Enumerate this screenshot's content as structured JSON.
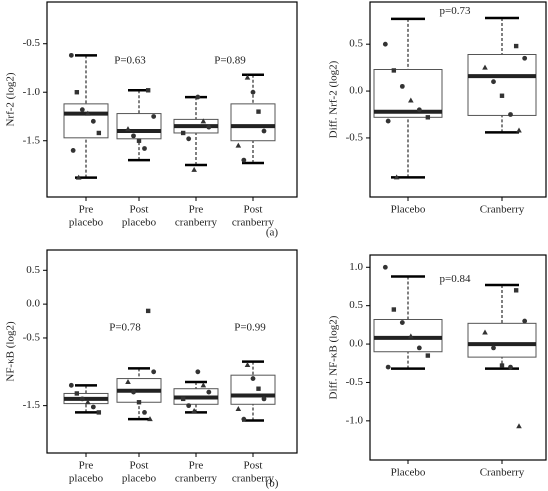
{
  "chart_data": [
    {
      "type": "box",
      "ylabel": "Nrf-2 (log2)",
      "ylim": [
        -2.08,
        -0.07
      ],
      "yticks": [
        -0.5,
        {
          "value": -1,
          "label": "-1.0"
        },
        -1.5
      ],
      "categories": [
        [
          "Pre",
          "placebo"
        ],
        [
          "Post",
          "placebo"
        ],
        [
          "Pre",
          "cranberry"
        ],
        [
          "Post",
          "cranberry"
        ]
      ],
      "boxes": [
        {
          "min": -1.88,
          "q1": -1.47,
          "median": -1.22,
          "q3": -1.12,
          "max": -0.62,
          "points": [
            -0.62,
            -1.0,
            -1.18,
            -1.22,
            -1.3,
            -1.42,
            -1.6,
            -1.88
          ]
        },
        {
          "min": -1.7,
          "q1": -1.48,
          "median": -1.4,
          "q3": -1.22,
          "max": -0.98,
          "points": [
            -0.98,
            -1.25,
            -1.38,
            -1.45,
            -1.5,
            -1.58
          ]
        },
        {
          "min": -1.75,
          "q1": -1.42,
          "median": -1.35,
          "q3": -1.28,
          "max": -1.05,
          "points": [
            -1.05,
            -1.3,
            -1.36,
            -1.42,
            -1.48,
            -1.8
          ]
        },
        {
          "min": -1.73,
          "q1": -1.5,
          "median": -1.35,
          "q3": -1.12,
          "max": -0.82,
          "points": [
            -0.85,
            -1.0,
            -1.2,
            -1.4,
            -1.55,
            -1.7
          ]
        }
      ],
      "annotations": [
        "P=0.63",
        "P=0.89"
      ]
    },
    {
      "type": "box",
      "ylabel": "Diff. Nrf-2 (log2)",
      "ylim": [
        -1.13,
        0.95
      ],
      "yticks": [
        0.5,
        {
          "value": 0,
          "label": "0.0"
        },
        -0.5
      ],
      "categories": [
        [
          "Placebo"
        ],
        [
          "Cranberry"
        ]
      ],
      "boxes": [
        {
          "min": -0.92,
          "q1": -0.28,
          "median": -0.22,
          "q3": 0.23,
          "max": 0.77,
          "points": [
            0.5,
            0.22,
            0.05,
            -0.1,
            -0.2,
            -0.28,
            -0.32,
            -0.92
          ]
        },
        {
          "min": -0.44,
          "q1": -0.26,
          "median": 0.16,
          "q3": 0.39,
          "max": 0.78,
          "points": [
            0.48,
            0.35,
            0.25,
            0.1,
            -0.05,
            -0.25,
            -0.42
          ]
        }
      ],
      "annotations": [
        "p=0.73"
      ]
    },
    {
      "type": "box",
      "ylabel": "NF-κB (log2)",
      "ylim": [
        -2.2,
        0.8
      ],
      "yticks": [
        0.5,
        {
          "value": 0,
          "label": "0.0"
        },
        -0.5,
        -1.5
      ],
      "categories": [
        [
          "Pre",
          "placebo"
        ],
        [
          "Post",
          "placebo"
        ],
        [
          "Pre",
          "cranberry"
        ],
        [
          "Post",
          "cranberry"
        ]
      ],
      "boxes": [
        {
          "min": -1.6,
          "q1": -1.47,
          "median": -1.4,
          "q3": -1.32,
          "max": -1.2,
          "points": [
            -1.2,
            -1.32,
            -1.4,
            -1.45,
            -1.52,
            -1.6
          ]
        },
        {
          "min": -1.7,
          "q1": -1.45,
          "median": -1.28,
          "q3": -1.1,
          "max": -0.95,
          "points": [
            -0.1,
            -1.0,
            -1.15,
            -1.3,
            -1.45,
            -1.6,
            -1.7
          ]
        },
        {
          "min": -1.6,
          "q1": -1.48,
          "median": -1.38,
          "q3": -1.25,
          "max": -1.15,
          "points": [
            -1.0,
            -1.2,
            -1.3,
            -1.4,
            -1.5,
            -1.58
          ]
        },
        {
          "min": -1.72,
          "q1": -1.48,
          "median": -1.35,
          "q3": -1.05,
          "max": -0.85,
          "points": [
            -0.9,
            -1.1,
            -1.25,
            -1.4,
            -1.55,
            -1.7
          ]
        }
      ],
      "annotations": [
        "P=0.78",
        "P=0.99"
      ]
    },
    {
      "type": "box",
      "ylabel": "Diff. NF-κB (log2)",
      "ylim": [
        -1.51,
        1.16
      ],
      "yticks": [
        {
          "value": 1,
          "label": "1.0"
        },
        0.5,
        {
          "value": 0,
          "label": "0.0"
        },
        -0.5,
        {
          "value": -1,
          "label": "-1.0"
        }
      ],
      "categories": [
        [
          "Placebo"
        ],
        [
          "Cranberry"
        ]
      ],
      "boxes": [
        {
          "min": -0.32,
          "q1": -0.1,
          "median": 0.08,
          "q3": 0.32,
          "max": 0.88,
          "points": [
            1.0,
            0.45,
            0.28,
            0.1,
            -0.05,
            -0.15,
            -0.3
          ]
        },
        {
          "min": -0.32,
          "q1": -0.17,
          "median": 0,
          "q3": 0.27,
          "max": 0.77,
          "points": [
            0.7,
            0.3,
            0.15,
            -0.05,
            -0.28,
            -0.3,
            -1.07
          ]
        }
      ],
      "annotations": [
        "p=0.84"
      ]
    }
  ],
  "captions": [
    "(a)",
    "(b)"
  ]
}
